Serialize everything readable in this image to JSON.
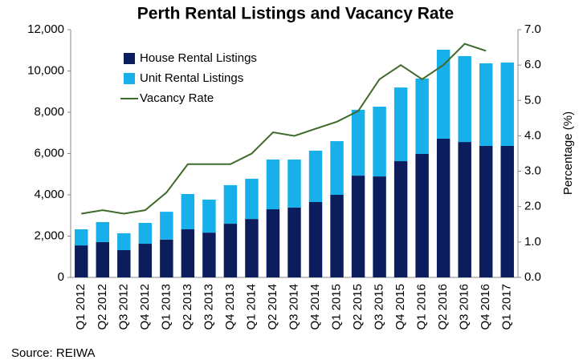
{
  "chart_data": {
    "type": "bar",
    "stacked": true,
    "title": "Perth Rental Listings and Vacancy Rate",
    "y2_label": "Percentage (%)",
    "source": "Source: REIWA",
    "categories": [
      "Q1 2012",
      "Q2 2012",
      "Q3 2012",
      "Q4 2012",
      "Q1 2013",
      "Q2 2013",
      "Q3 2013",
      "Q4 2013",
      "Q1 2014",
      "Q2 2014",
      "Q3 2014",
      "Q4 2014",
      "Q1 2015",
      "Q2 2015",
      "Q3 2015",
      "Q4 2015",
      "Q1 2016",
      "Q2 2016",
      "Q3 2016",
      "Q4 2016",
      "Q1 2017"
    ],
    "series": [
      {
        "name": "House Rental Listings",
        "color": "#0c1d5e",
        "type": "bar",
        "values": [
          1550,
          1710,
          1320,
          1630,
          1830,
          2330,
          2170,
          2600,
          2830,
          3300,
          3380,
          3650,
          4000,
          4930,
          4890,
          5630,
          5980,
          6720,
          6560,
          6370,
          6370
        ]
      },
      {
        "name": "Unit Rental Listings",
        "color": "#17b0ea",
        "type": "bar",
        "values": [
          780,
          970,
          820,
          1010,
          1350,
          1710,
          1600,
          1870,
          1950,
          2410,
          2330,
          2490,
          2600,
          3190,
          3380,
          3570,
          3650,
          4310,
          4160,
          4000,
          4040
        ]
      },
      {
        "name": "Vacancy Rate",
        "color": "#3f6a2a",
        "type": "line",
        "axis": "y2",
        "values": [
          1.8,
          1.9,
          1.8,
          1.9,
          2.4,
          3.2,
          3.2,
          3.2,
          3.5,
          4.1,
          4.0,
          4.2,
          4.4,
          4.7,
          5.6,
          6.0,
          5.6,
          6.0,
          6.6,
          6.4,
          null
        ]
      }
    ],
    "ylim": [
      0,
      12000
    ],
    "yticks": [
      0,
      {
        "value": 2000,
        "label": "2,000"
      },
      {
        "value": 4000,
        "label": "4,000"
      },
      {
        "value": 6000,
        "label": "6,000"
      },
      {
        "value": 8000,
        "label": "8,000"
      },
      {
        "value": 10000,
        "label": "10,000"
      },
      {
        "value": 12000,
        "label": "12,000"
      }
    ],
    "y2lim": [
      0,
      7
    ],
    "y2ticks": [
      {
        "value": 0,
        "label": "0.0"
      },
      {
        "value": 1,
        "label": "1.0"
      },
      {
        "value": 2,
        "label": "2.0"
      },
      {
        "value": 3,
        "label": "3.0"
      },
      {
        "value": 4,
        "label": "4.0"
      },
      {
        "value": 5,
        "label": "5.0"
      },
      {
        "value": 6,
        "label": "6.0"
      },
      {
        "value": 7,
        "label": "7.0"
      }
    ],
    "grid": false,
    "legend": "upper-left"
  }
}
